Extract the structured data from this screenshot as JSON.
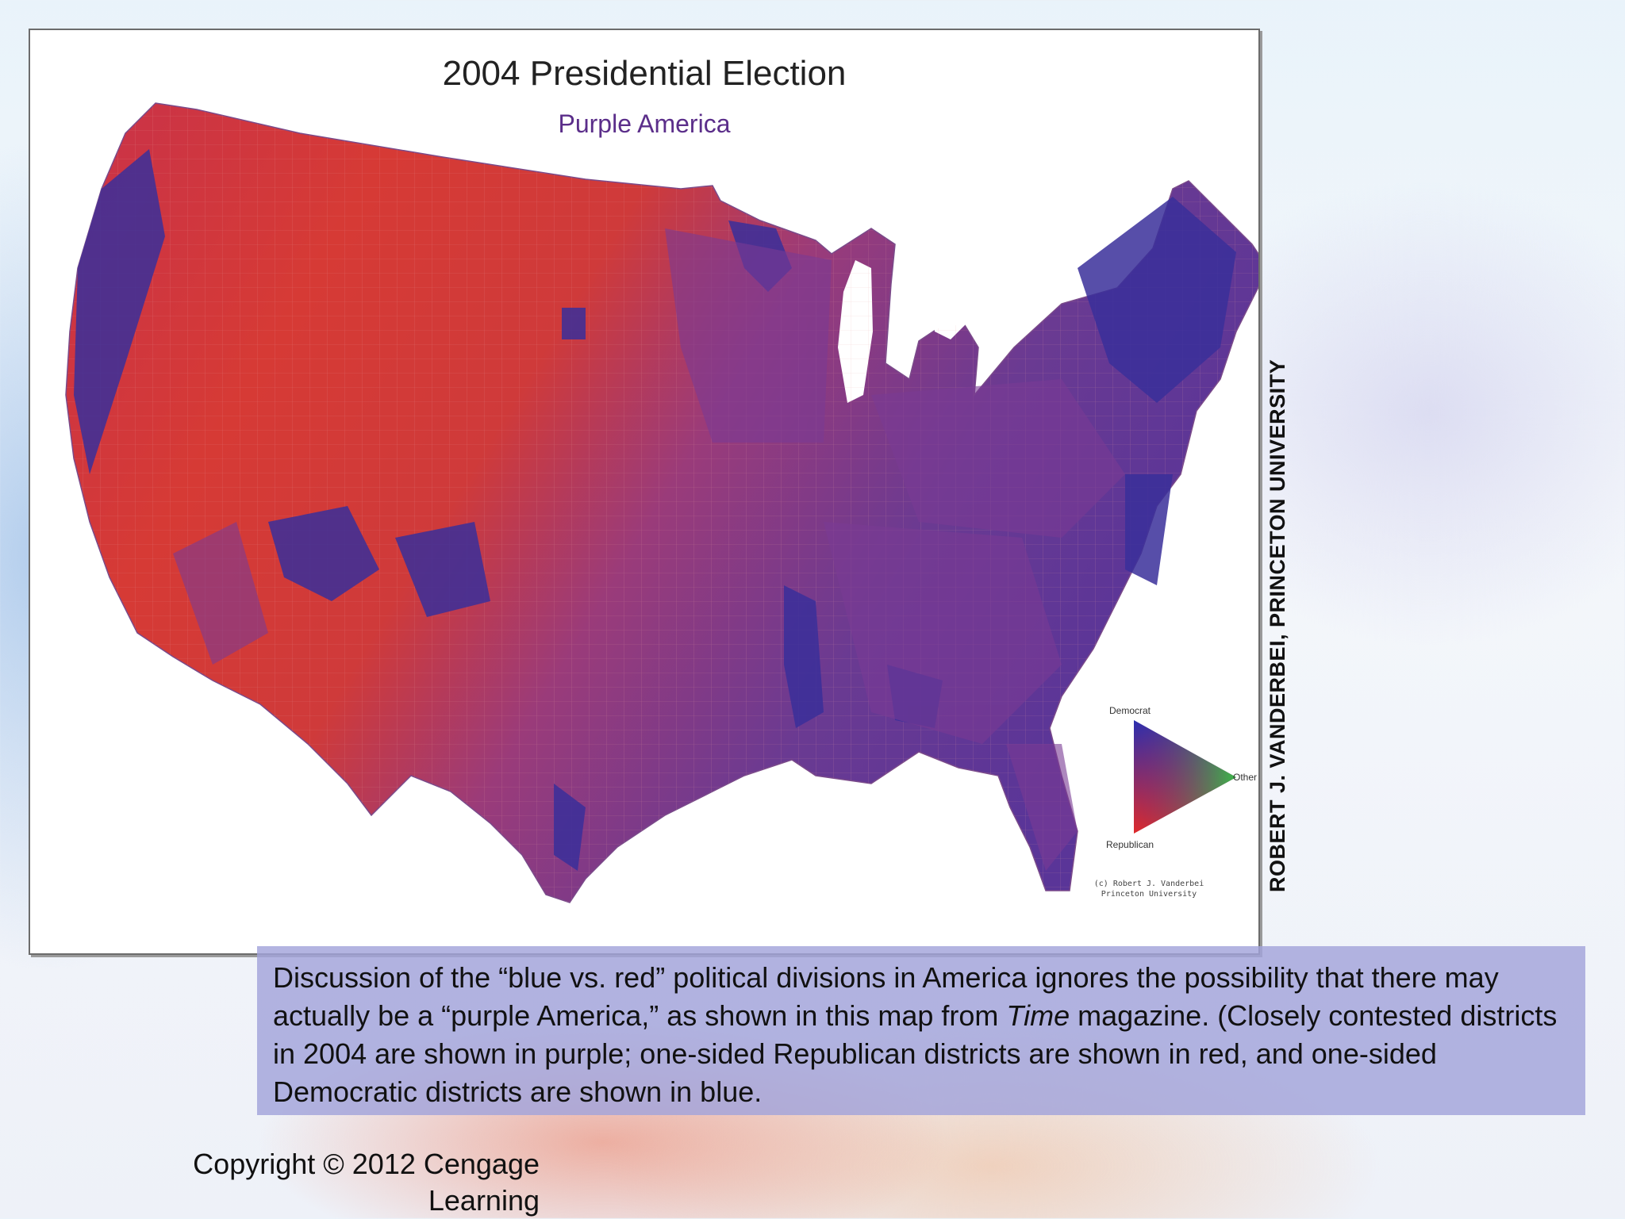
{
  "map": {
    "title": "2004 Presidential Election",
    "subtitle": "Purple America",
    "colors": {
      "republican": "#d9322b",
      "democrat": "#3a2f9a",
      "purple": "#7a3b8c",
      "other": "#3aa650"
    },
    "legend": {
      "democrat_label": "Democrat",
      "other_label": "Other",
      "republican_label": "Republican"
    },
    "credit_line_1": "(c) Robert J. Vanderbei",
    "credit_line_2": "Princeton University"
  },
  "side_credit": "ROBERT J. VANDERBEI, PRINCETON UNIVERSITY",
  "caption": {
    "part1": "Discussion of the “blue vs. red” political divisions in America ignores the possibility that there may actually be a “purple America,” as shown in this map from ",
    "italic": "Time",
    "part2": " magazine. (Closely contested districts in 2004 are shown in purple; one-sided Republican districts are shown in red, and one-sided Democratic districts are shown in blue."
  },
  "copyright": "Copyright © 2012 Cengage Learning"
}
